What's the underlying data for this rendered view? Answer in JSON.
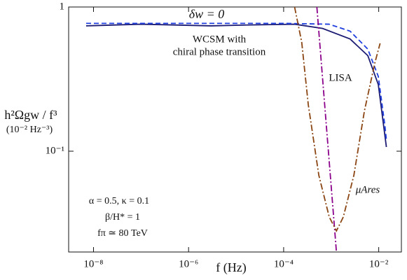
{
  "chart_data": {
    "type": "line",
    "x_label": "f (Hz)",
    "y_label": "h²Ωgw / f³",
    "y_label_unit": "(10⁻² Hz⁻³)",
    "xscale": "log",
    "yscale": "log",
    "xlim": [
      3e-09,
      0.03
    ],
    "ylim": [
      0.02,
      1
    ],
    "xticks": [
      {
        "value": 1e-08,
        "label": "10⁻⁸"
      },
      {
        "value": 1e-06,
        "label": "10⁻⁶"
      },
      {
        "value": 0.0001,
        "label": "10⁻⁴"
      },
      {
        "value": 0.01,
        "label": "10⁻²"
      }
    ],
    "yticks": [
      {
        "value": 0.1,
        "label": "10⁻¹"
      },
      1
    ],
    "annotations": [
      "WCSM with",
      "chiral phase transition",
      "α = 0.5, κ = 0.1",
      "β/H* = 1",
      "fπ ≃ 80 TeV"
    ],
    "series": [
      {
        "color": "#1c1c74",
        "dash": "solid",
        "x": [
          7e-09,
          1e-07,
          3e-06,
          1.6e-05,
          0.00017,
          0.00066,
          0.0025,
          0.0059,
          0.0098,
          0.0145
        ],
        "values": [
          0.74,
          0.76,
          0.74,
          0.75,
          0.76,
          0.71,
          0.6,
          0.46,
          0.29,
          0.107
        ]
      },
      {
        "name": "δw = 0",
        "color": "#1f3fe0",
        "dash": "dashed",
        "x": [
          7e-09,
          1e-06,
          0.0001,
          0.0009,
          0.0025,
          0.0059,
          0.0098,
          0.0135,
          0.0145
        ],
        "values": [
          0.77,
          0.77,
          0.77,
          0.76,
          0.68,
          0.51,
          0.33,
          0.15,
          0.12
        ]
      },
      {
        "name": "LISA",
        "color": "#8b008b",
        "dash": "dashdot",
        "x": [
          0.0005,
          0.00129
        ],
        "values": [
          1,
          0.02
        ]
      },
      {
        "name": "μAres",
        "color": "#8b4513",
        "dash": "dashdot",
        "x": [
          0.00017,
          0.00024,
          0.00033,
          0.00055,
          0.00091,
          0.00129,
          0.0018,
          0.003,
          0.005,
          0.0083,
          0.0107
        ],
        "values": [
          1,
          0.57,
          0.21,
          0.068,
          0.035,
          0.028,
          0.035,
          0.068,
          0.19,
          0.41,
          0.56
        ]
      }
    ]
  }
}
